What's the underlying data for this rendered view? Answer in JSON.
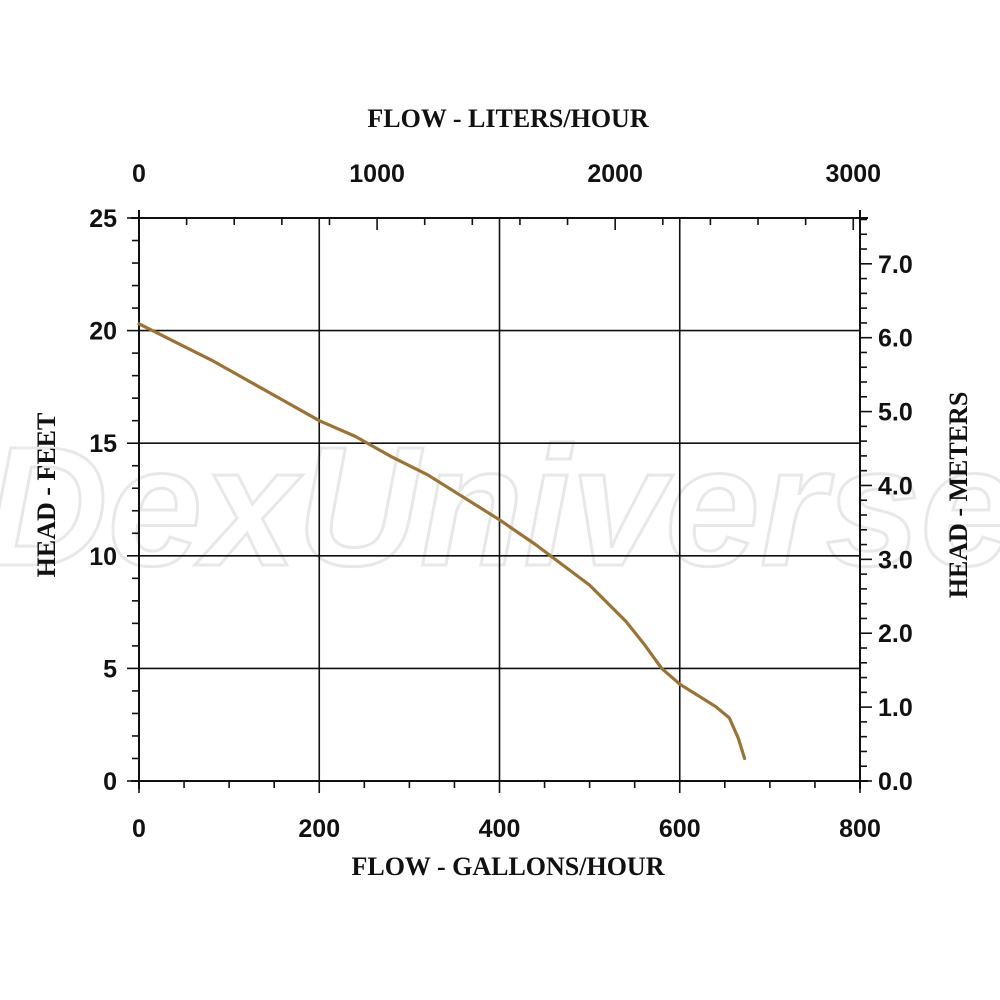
{
  "watermark": "DexUniverse",
  "chart_data": {
    "type": "line",
    "xlabel": "FLOW - GALLONS/HOUR",
    "ylabel": "HEAD - FEET",
    "x2label": "FLOW - LITERS/HOUR",
    "y2label": "HEAD - METERS",
    "xlim": [
      0,
      800
    ],
    "ylim": [
      0,
      25
    ],
    "x2lim": [
      0,
      3028.33
    ],
    "y2lim": [
      0,
      7.62
    ],
    "xticks": [
      0,
      200,
      400,
      600,
      800
    ],
    "xtick_labels": [
      "0",
      "200",
      "400",
      "600",
      "800"
    ],
    "yticks": [
      0,
      5,
      10,
      15,
      20,
      25
    ],
    "ytick_labels": [
      "0",
      "5",
      "10",
      "15",
      "20",
      "25"
    ],
    "x2ticks": [
      0,
      1000,
      2000,
      3000
    ],
    "x2tick_labels": [
      "0",
      "1000",
      "2000",
      "3000"
    ],
    "y2ticks": [
      0,
      1,
      2,
      3,
      4,
      5,
      6,
      7
    ],
    "y2tick_labels": [
      "0.0",
      "1.0",
      "2.0",
      "3.0",
      "4.0",
      "5.0",
      "6.0",
      "7.0"
    ],
    "grid": true,
    "line_color": "#9c7235",
    "series": [
      {
        "x": [
          0,
          40,
          80,
          120,
          160,
          200,
          240,
          280,
          320,
          360,
          400,
          440,
          460,
          500,
          540,
          560,
          580,
          600,
          620,
          640,
          655,
          665,
          672
        ],
        "y": [
          20.3,
          19.5,
          18.7,
          17.8,
          16.9,
          16.0,
          15.3,
          14.4,
          13.6,
          12.6,
          11.6,
          10.5,
          9.9,
          8.7,
          7.1,
          6.1,
          5.0,
          4.3,
          3.8,
          3.3,
          2.8,
          1.9,
          1.0
        ]
      }
    ]
  }
}
